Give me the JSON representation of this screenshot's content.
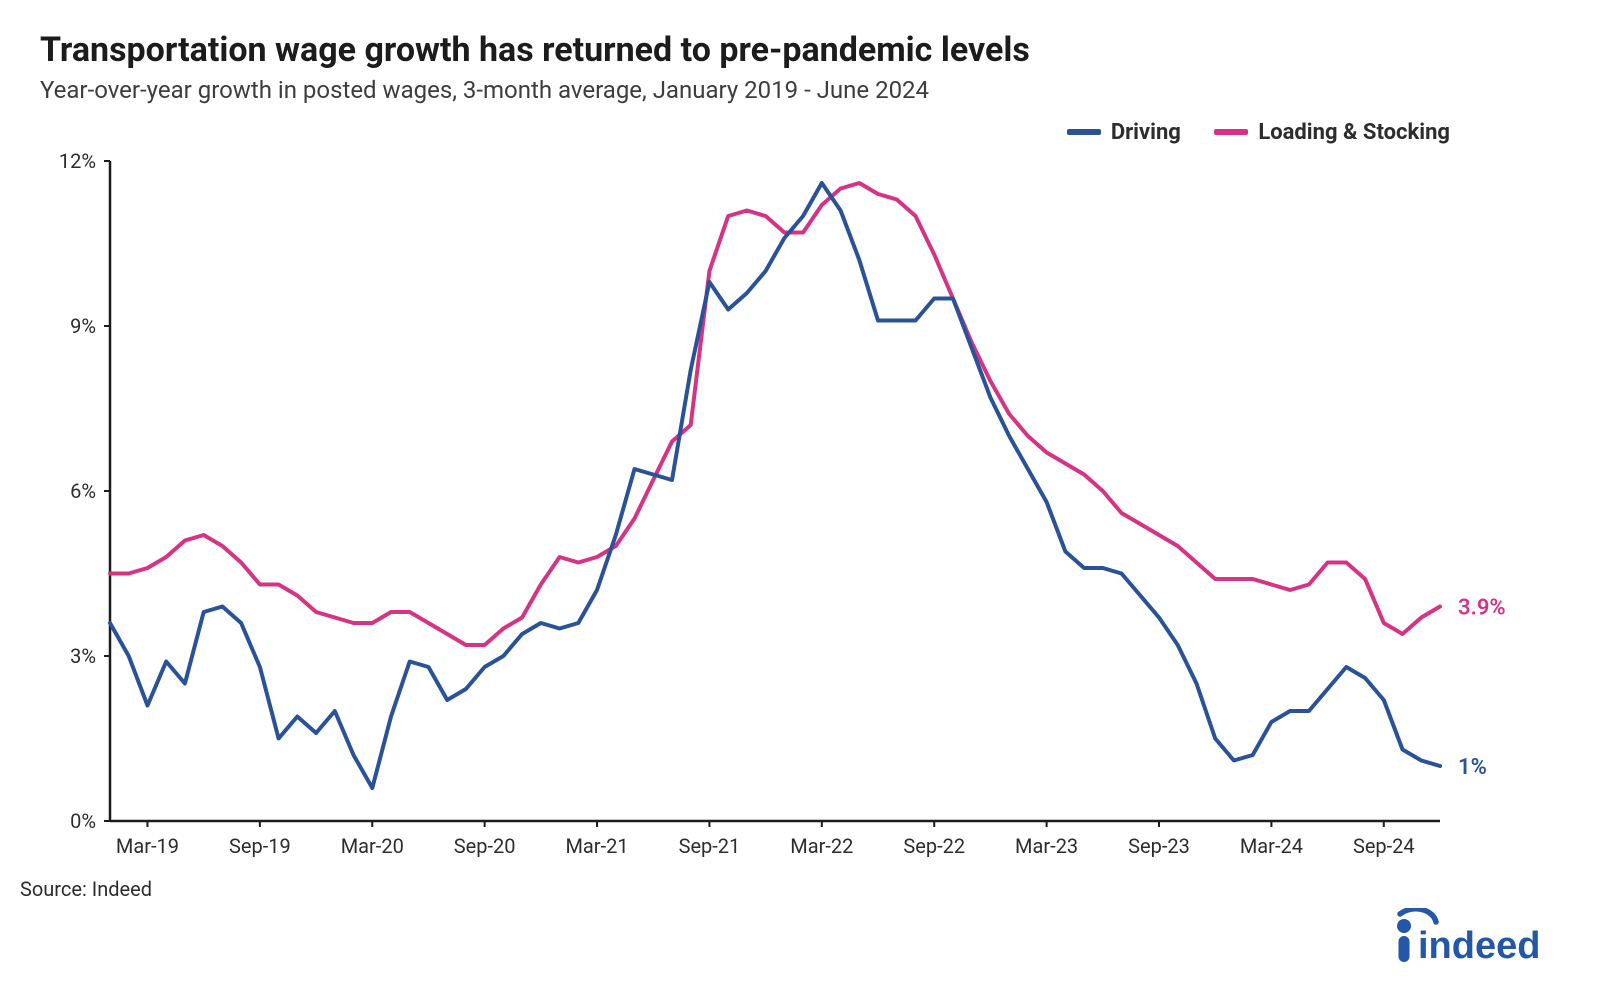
{
  "title": "Transportation wage growth has returned to pre-pandemic levels",
  "subtitle": "Year-over-year growth in posted wages, 3-month average, January 2019 - June 2024",
  "source": "Source: Indeed",
  "logo_text": "indeed",
  "chart": {
    "type": "line",
    "background_color": "#ffffff",
    "axis_color": "#1c1c1c",
    "tick_fontsize": 20,
    "title_fontsize": 34,
    "subtitle_fontsize": 24,
    "line_width": 4,
    "ylim": [
      0,
      12
    ],
    "ytick_step": 3,
    "y_suffix": "%",
    "x_start_index": 2,
    "x_labels": [
      "Mar-19",
      "Sep-19",
      "Mar-20",
      "Sep-20",
      "Mar-21",
      "Sep-21",
      "Mar-22",
      "Sep-22",
      "Mar-23",
      "Sep-23",
      "Mar-24",
      "Sep-24"
    ],
    "x_tick_step_months": 6,
    "legend": [
      {
        "label": "Driving",
        "color": "#2a5298"
      },
      {
        "label": "Loading & Stocking",
        "color": "#d63384"
      }
    ],
    "series": {
      "driving": {
        "color": "#2a5298",
        "end_label": "1%",
        "values": [
          3.6,
          3.0,
          2.1,
          2.9,
          2.5,
          3.8,
          3.9,
          3.6,
          2.8,
          1.5,
          1.9,
          1.6,
          2.0,
          1.2,
          0.6,
          1.9,
          2.9,
          2.8,
          2.2,
          2.4,
          2.8,
          3.0,
          3.4,
          3.6,
          3.5,
          3.6,
          4.2,
          5.2,
          6.4,
          6.3,
          6.2,
          8.2,
          9.8,
          9.3,
          9.6,
          10.0,
          10.6,
          11.0,
          11.6,
          11.1,
          10.2,
          9.1,
          9.1,
          9.1,
          9.5,
          9.5,
          8.6,
          7.7,
          7.0,
          6.4,
          5.8,
          4.9,
          4.6,
          4.6,
          4.5,
          4.1,
          3.7,
          3.2,
          2.5,
          1.5,
          1.1,
          1.2,
          1.8,
          2.0,
          2.0,
          2.4,
          2.8,
          2.6,
          2.2,
          1.3,
          1.1,
          1.0
        ]
      },
      "loading": {
        "color": "#d63384",
        "end_label": "3.9%",
        "values": [
          4.5,
          4.5,
          4.6,
          4.8,
          5.1,
          5.2,
          5.0,
          4.7,
          4.3,
          4.3,
          4.1,
          3.8,
          3.7,
          3.6,
          3.6,
          3.8,
          3.8,
          3.6,
          3.4,
          3.2,
          3.2,
          3.5,
          3.7,
          4.3,
          4.8,
          4.7,
          4.8,
          5.0,
          5.5,
          6.2,
          6.9,
          7.2,
          10.0,
          11.0,
          11.1,
          11.0,
          10.7,
          10.7,
          11.2,
          11.5,
          11.6,
          11.4,
          11.3,
          11.0,
          10.3,
          9.5,
          8.7,
          8.0,
          7.4,
          7.0,
          6.7,
          6.5,
          6.3,
          6.0,
          5.6,
          5.4,
          5.2,
          5.0,
          4.7,
          4.4,
          4.4,
          4.4,
          4.3,
          4.2,
          4.3,
          4.7,
          4.7,
          4.4,
          3.6,
          3.4,
          3.7,
          3.9
        ]
      }
    }
  }
}
